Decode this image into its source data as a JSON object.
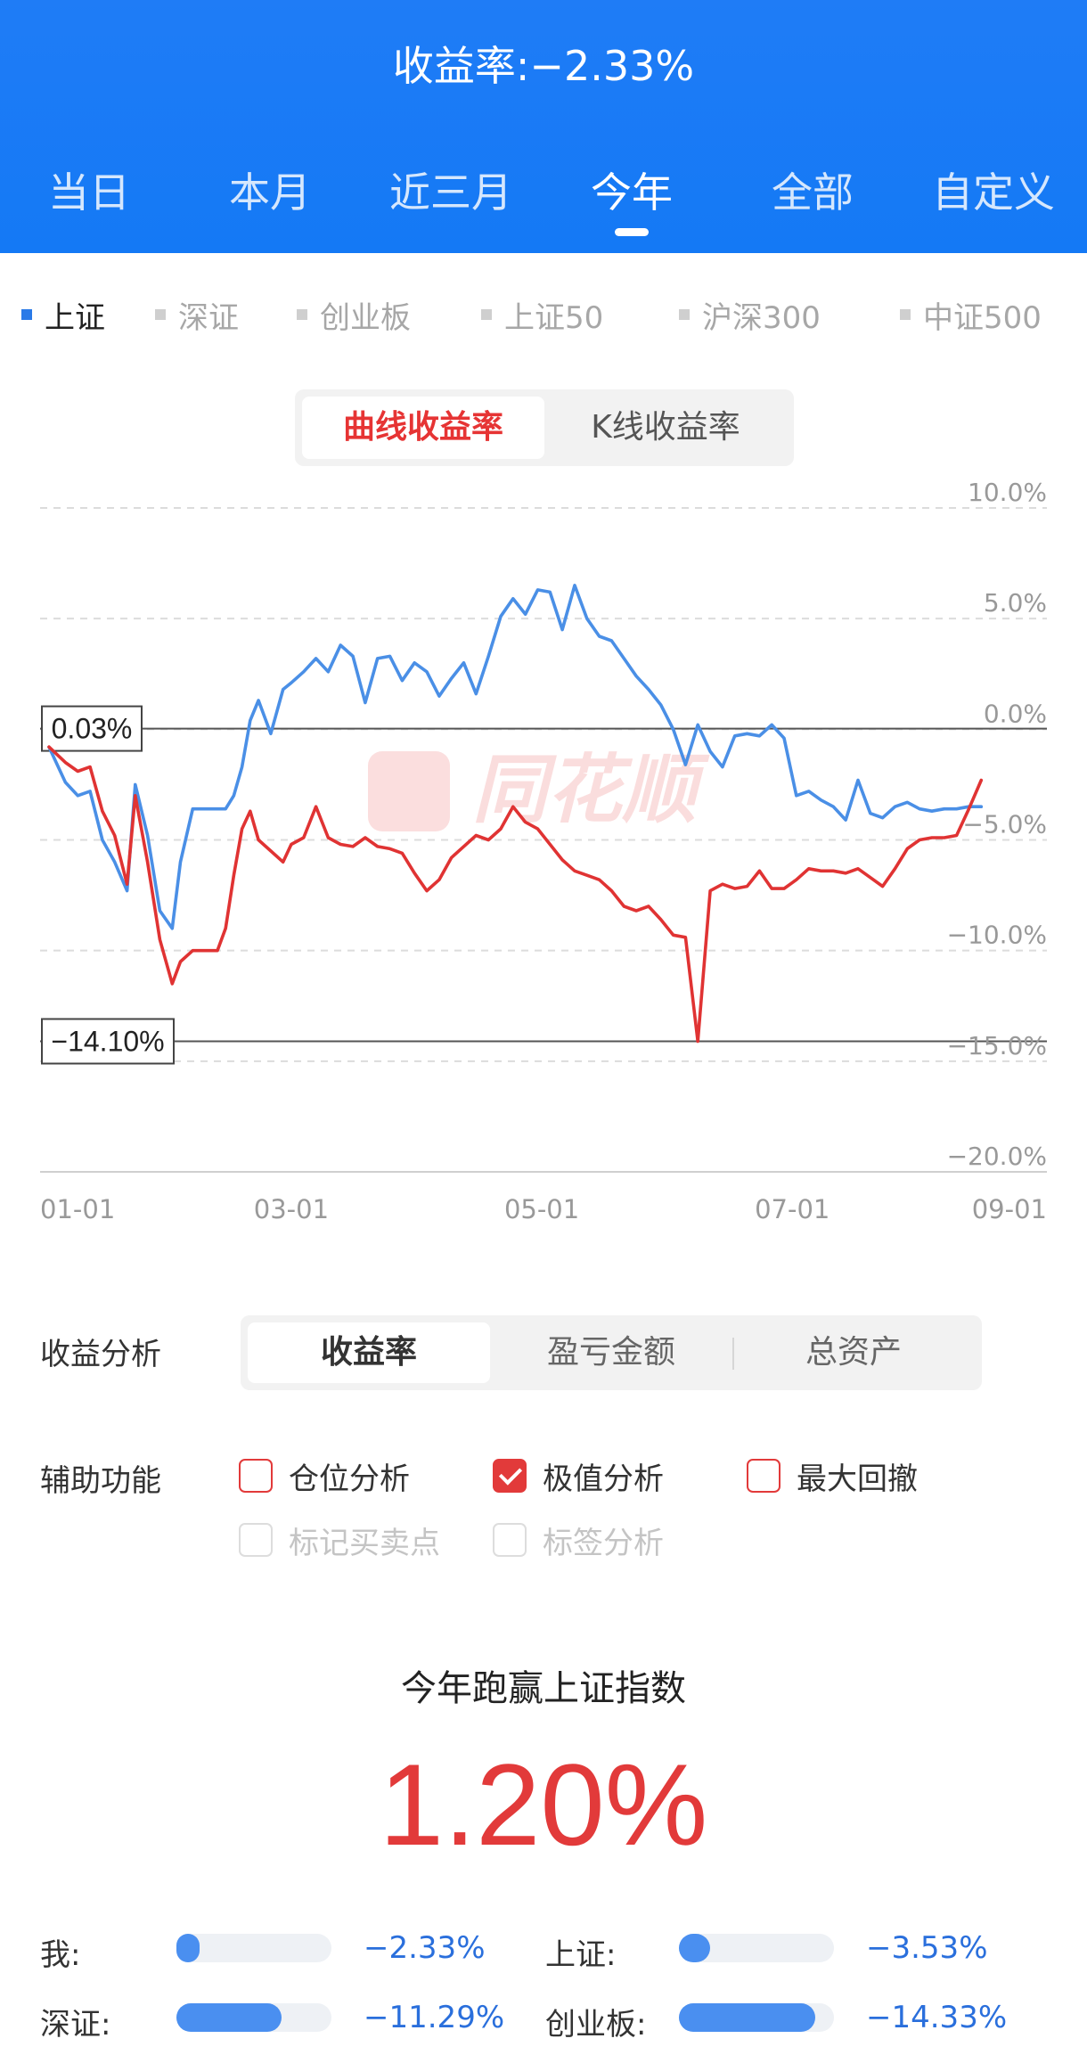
{
  "header": {
    "title": "收益率:−2.33%",
    "period_tabs": [
      "当日",
      "本月",
      "近三月",
      "今年",
      "全部",
      "自定义"
    ],
    "active_period": "今年"
  },
  "index_tabs": [
    "上证",
    "深证",
    "创业板",
    "上证50",
    "沪深300",
    "中证500"
  ],
  "active_index": "上证",
  "chart_mode": {
    "options": [
      "曲线收益率",
      "K线收益率"
    ],
    "active": "曲线收益率"
  },
  "watermark": "同花顺",
  "chart_data": {
    "type": "line",
    "x_ticks": [
      "01-01",
      "03-01",
      "05-01",
      "07-01",
      "09-01"
    ],
    "y_ticks": [
      "10.0%",
      "5.0%",
      "0.0%",
      "−5.0%",
      "−10.0%",
      "−15.0%",
      "−20.0%"
    ],
    "ylim": [
      -20,
      10
    ],
    "xlim": [
      "01-01",
      "09-01"
    ],
    "grid": true,
    "markers": [
      {
        "label": "0.03%",
        "value": 0.03
      },
      {
        "label": "−14.10%",
        "value": -14.1
      }
    ],
    "series": [
      {
        "color": "#4a8fe6",
        "x": [
          "01-01",
          "01-05",
          "01-08",
          "01-11",
          "01-14",
          "01-17",
          "01-20",
          "01-22",
          "01-25",
          "01-28",
          "01-31",
          "02-02",
          "02-05",
          "02-07",
          "02-09",
          "02-11",
          "02-13",
          "02-15",
          "02-17",
          "02-19",
          "02-21",
          "02-24",
          "02-27",
          "03-01",
          "03-04",
          "03-07",
          "03-10",
          "03-13",
          "03-16",
          "03-19",
          "03-22",
          "03-25",
          "03-28",
          "03-31",
          "04-03",
          "04-06",
          "04-09",
          "04-12",
          "04-15",
          "04-18",
          "04-21",
          "04-24",
          "04-27",
          "04-30",
          "05-03",
          "05-06",
          "05-09",
          "05-12",
          "05-15",
          "05-18",
          "05-21",
          "05-24",
          "05-27",
          "05-30",
          "06-02",
          "06-05",
          "06-08",
          "06-11",
          "06-14",
          "06-17",
          "06-20",
          "06-23",
          "06-26",
          "06-29",
          "07-02",
          "07-05",
          "07-08",
          "07-11",
          "07-14",
          "07-17",
          "07-20",
          "07-23",
          "07-26",
          "07-29",
          "08-01",
          "08-04",
          "08-07",
          "08-10",
          "08-13",
          "08-16"
        ],
        "values": [
          -0.8,
          -2.4,
          -3.0,
          -2.8,
          -5.0,
          -6.0,
          -7.3,
          -2.5,
          -4.8,
          -8.2,
          -9.0,
          -6.0,
          -3.6,
          -3.6,
          -3.6,
          -3.6,
          -3.6,
          -3.0,
          -1.7,
          0.4,
          1.3,
          -0.2,
          1.8,
          2.1,
          2.6,
          3.2,
          2.6,
          3.8,
          3.3,
          1.2,
          3.2,
          3.3,
          2.2,
          3.0,
          2.6,
          1.5,
          2.3,
          3.0,
          1.6,
          3.3,
          5.1,
          5.9,
          5.2,
          6.3,
          6.2,
          4.5,
          6.5,
          5.0,
          4.2,
          4.0,
          3.2,
          2.4,
          1.8,
          1.1,
          0.0,
          -1.6,
          0.2,
          -1.0,
          -1.7,
          -0.3,
          -0.2,
          -0.3,
          0.2,
          -0.4,
          -3.0,
          -2.8,
          -3.2,
          -3.5,
          -4.1,
          -2.3,
          -3.8,
          -4.0,
          -3.5,
          -3.3,
          -3.6,
          -3.7,
          -3.6,
          -3.6,
          -3.5,
          -3.5
        ]
      },
      {
        "color": "#e03333",
        "x": [
          "01-01",
          "01-05",
          "01-08",
          "01-11",
          "01-14",
          "01-17",
          "01-20",
          "01-22",
          "01-25",
          "01-28",
          "01-31",
          "02-02",
          "02-05",
          "02-07",
          "02-09",
          "02-11",
          "02-13",
          "02-15",
          "02-17",
          "02-19",
          "02-21",
          "02-24",
          "02-27",
          "03-01",
          "03-04",
          "03-07",
          "03-10",
          "03-13",
          "03-16",
          "03-19",
          "03-22",
          "03-25",
          "03-28",
          "03-31",
          "04-03",
          "04-06",
          "04-09",
          "04-12",
          "04-15",
          "04-18",
          "04-21",
          "04-24",
          "04-27",
          "04-30",
          "05-03",
          "05-06",
          "05-09",
          "05-12",
          "05-15",
          "05-18",
          "05-21",
          "05-24",
          "05-27",
          "05-30",
          "06-02",
          "06-05",
          "06-08",
          "06-11",
          "06-14",
          "06-17",
          "06-20",
          "06-23",
          "06-26",
          "06-29",
          "07-02",
          "07-05",
          "07-08",
          "07-11",
          "07-14",
          "07-17",
          "07-20",
          "07-23",
          "07-26",
          "07-29",
          "08-01",
          "08-04",
          "08-07",
          "08-10",
          "08-13",
          "08-16"
        ],
        "values": [
          -0.8,
          -1.5,
          -1.9,
          -1.7,
          -3.7,
          -4.8,
          -7.0,
          -3.0,
          -6.0,
          -9.5,
          -11.5,
          -10.5,
          -10.0,
          -10.0,
          -10.0,
          -10.0,
          -9.0,
          -6.6,
          -4.5,
          -3.7,
          -5.0,
          -5.5,
          -6.0,
          -5.2,
          -4.9,
          -3.5,
          -4.9,
          -5.2,
          -5.3,
          -4.9,
          -5.3,
          -5.4,
          -5.6,
          -6.5,
          -7.3,
          -6.8,
          -5.8,
          -5.3,
          -4.8,
          -5.0,
          -4.5,
          -3.5,
          -4.2,
          -4.5,
          -5.2,
          -5.9,
          -6.4,
          -6.6,
          -6.8,
          -7.3,
          -8.0,
          -8.2,
          -8.0,
          -8.6,
          -9.3,
          -9.4,
          -14.1,
          -7.3,
          -7.0,
          -7.2,
          -7.1,
          -6.4,
          -7.2,
          -7.2,
          -6.8,
          -6.3,
          -6.4,
          -6.4,
          -6.5,
          -6.3,
          -6.7,
          -7.1,
          -6.3,
          -5.4,
          -5.0,
          -4.9,
          -4.9,
          -4.8,
          -3.6,
          -2.3
        ]
      }
    ]
  },
  "analysis": {
    "label": "收益分析",
    "options": [
      "收益率",
      "盈亏金额",
      "总资产"
    ],
    "active": "收益率"
  },
  "aux": {
    "label": "辅助功能",
    "items": [
      {
        "label": "仓位分析",
        "checked": false,
        "disabled": false
      },
      {
        "label": "极值分析",
        "checked": true,
        "disabled": false
      },
      {
        "label": "最大回撤",
        "checked": false,
        "disabled": false
      },
      {
        "label": "标记买卖点",
        "checked": false,
        "disabled": true
      },
      {
        "label": "标签分析",
        "checked": false,
        "disabled": true
      }
    ]
  },
  "beat": {
    "title": "今年跑赢上证指数",
    "value": "1.20%"
  },
  "comparison": [
    {
      "label": "我:",
      "value": "−2.33%",
      "fill": 0.1
    },
    {
      "label": "上证:",
      "value": "−3.53%",
      "fill": 0.2
    },
    {
      "label": "深证:",
      "value": "−11.29%",
      "fill": 0.68
    },
    {
      "label": "创业板:",
      "value": "−14.33%",
      "fill": 0.88
    }
  ]
}
